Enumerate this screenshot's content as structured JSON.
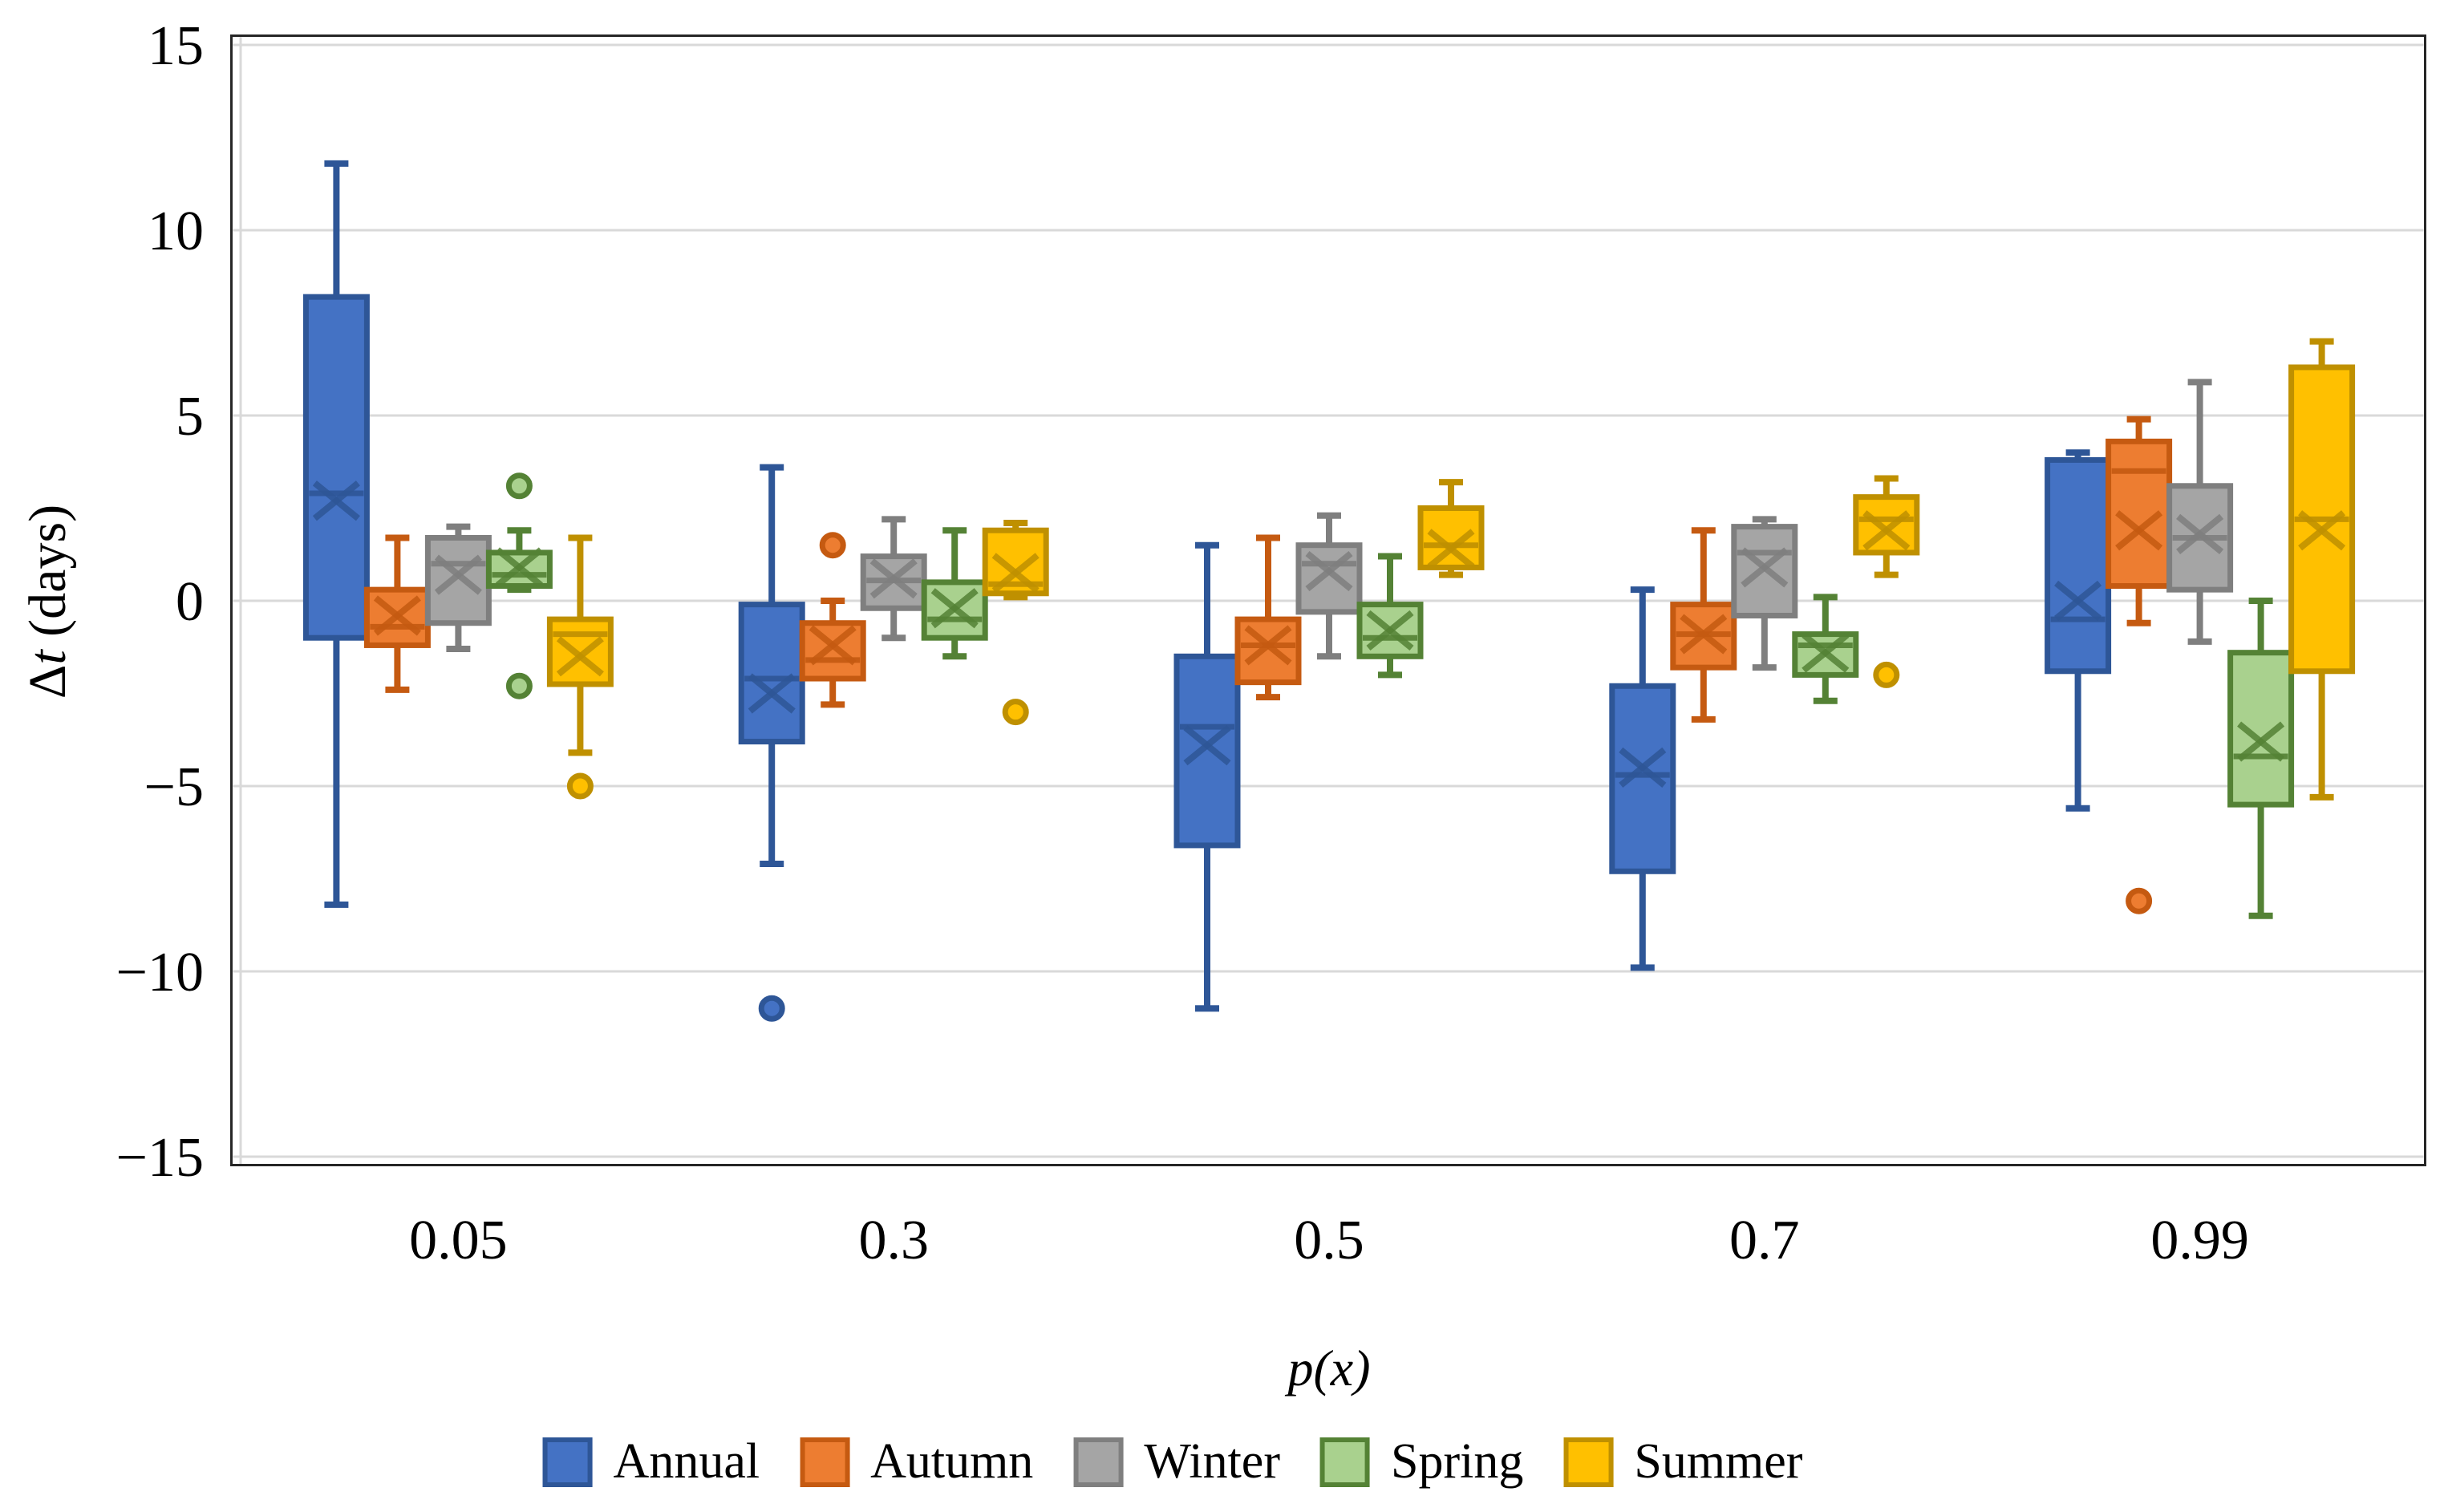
{
  "chart_data": {
    "type": "boxplot",
    "title": "",
    "xlabel": "p(x)",
    "ylabel": "Δt (days)",
    "ylabel_parts": {
      "delta": "Δ",
      "var": "t",
      "rest": " (days)"
    },
    "categories": [
      "0.05",
      "0.3",
      "0.5",
      "0.7",
      "0.99"
    ],
    "y_axis": {
      "min": -15,
      "max": 15,
      "step": 5,
      "tick_labels": [
        "15",
        "10",
        "5",
        "0",
        "−5",
        "−10",
        "−15"
      ]
    },
    "grid": {
      "on": true,
      "gridline_color": "#D9D9D9",
      "border_color": "#262626"
    },
    "legend_position": "bottom",
    "series": [
      {
        "name": "Annual",
        "fill": "#4472C4",
        "stroke": "#2E5697",
        "boxes": [
          {
            "whislo": -8.2,
            "q1": -1.0,
            "med": 2.9,
            "q3": 8.2,
            "whishi": 11.8,
            "mean": 2.7,
            "outliers": []
          },
          {
            "whislo": -7.1,
            "q1": -3.8,
            "med": -2.1,
            "q3": -0.1,
            "whishi": 3.6,
            "mean": -2.5,
            "outliers": [
              -11.0
            ]
          },
          {
            "whislo": -11.0,
            "q1": -6.6,
            "med": -3.4,
            "q3": -1.5,
            "whishi": 1.5,
            "mean": -3.9,
            "outliers": []
          },
          {
            "whislo": -9.9,
            "q1": -7.3,
            "med": -4.7,
            "q3": -2.3,
            "whishi": 0.3,
            "mean": -4.5,
            "outliers": []
          },
          {
            "whislo": -5.6,
            "q1": -1.9,
            "med": -0.5,
            "q3": 3.8,
            "whishi": 4.0,
            "mean": 0.0,
            "outliers": []
          }
        ]
      },
      {
        "name": "Autumn",
        "fill": "#ED7D31",
        "stroke": "#C55A11",
        "boxes": [
          {
            "whislo": -2.4,
            "q1": -1.2,
            "med": -0.7,
            "q3": 0.3,
            "whishi": 1.7,
            "mean": -0.4,
            "outliers": []
          },
          {
            "whislo": -2.8,
            "q1": -2.1,
            "med": -1.6,
            "q3": -0.6,
            "whishi": 0.0,
            "mean": -1.2,
            "outliers": [
              1.5
            ]
          },
          {
            "whislo": -2.6,
            "q1": -2.2,
            "med": -1.2,
            "q3": -0.5,
            "whishi": 1.7,
            "mean": -1.2,
            "outliers": []
          },
          {
            "whislo": -3.2,
            "q1": -1.8,
            "med": -0.9,
            "q3": -0.1,
            "whishi": 1.9,
            "mean": -0.9,
            "outliers": []
          },
          {
            "whislo": -0.6,
            "q1": 0.4,
            "med": 3.5,
            "q3": 4.3,
            "whishi": 4.9,
            "mean": 1.9,
            "outliers": [
              -8.1
            ]
          }
        ]
      },
      {
        "name": "Winter",
        "fill": "#A5A5A5",
        "stroke": "#7F7F7F",
        "boxes": [
          {
            "whislo": -1.3,
            "q1": -0.6,
            "med": 1.0,
            "q3": 1.7,
            "whishi": 2.0,
            "mean": 0.7,
            "outliers": []
          },
          {
            "whislo": -1.0,
            "q1": -0.2,
            "med": 0.55,
            "q3": 1.2,
            "whishi": 2.2,
            "mean": 0.6,
            "outliers": []
          },
          {
            "whislo": -1.5,
            "q1": -0.3,
            "med": 1.0,
            "q3": 1.5,
            "whishi": 2.3,
            "mean": 0.8,
            "outliers": []
          },
          {
            "whislo": -1.8,
            "q1": -0.4,
            "med": 1.3,
            "q3": 2.0,
            "whishi": 2.2,
            "mean": 0.9,
            "outliers": []
          },
          {
            "whislo": -1.1,
            "q1": 0.3,
            "med": 1.7,
            "q3": 3.1,
            "whishi": 5.9,
            "mean": 1.8,
            "outliers": []
          }
        ]
      },
      {
        "name": "Spring",
        "fill": "#A9D18E",
        "stroke": "#548235",
        "boxes": [
          {
            "whislo": 0.3,
            "q1": 0.4,
            "med": 0.7,
            "q3": 1.3,
            "whishi": 1.9,
            "mean": 0.9,
            "outliers": [
              3.1,
              -2.3
            ]
          },
          {
            "whislo": -1.5,
            "q1": -1.0,
            "med": -0.5,
            "q3": 0.5,
            "whishi": 1.9,
            "mean": -0.2,
            "outliers": []
          },
          {
            "whislo": -2.0,
            "q1": -1.5,
            "med": -1.0,
            "q3": -0.1,
            "whishi": 1.2,
            "mean": -0.8,
            "outliers": []
          },
          {
            "whislo": -2.7,
            "q1": -2.0,
            "med": -1.2,
            "q3": -0.9,
            "whishi": 0.1,
            "mean": -1.4,
            "outliers": []
          },
          {
            "whislo": -8.5,
            "q1": -5.5,
            "med": -4.2,
            "q3": -1.4,
            "whishi": 0.0,
            "mean": -3.8,
            "outliers": []
          }
        ]
      },
      {
        "name": "Summer",
        "fill": "#FFC000",
        "stroke": "#BF9000",
        "boxes": [
          {
            "whislo": -4.1,
            "q1": -2.25,
            "med": -0.9,
            "q3": -0.5,
            "whishi": 1.7,
            "mean": -1.5,
            "outliers": [
              -5.0
            ]
          },
          {
            "whislo": 0.1,
            "q1": 0.2,
            "med": 0.45,
            "q3": 1.9,
            "whishi": 2.1,
            "mean": 0.75,
            "outliers": [
              -3.0
            ]
          },
          {
            "whislo": 0.7,
            "q1": 0.9,
            "med": 1.5,
            "q3": 2.5,
            "whishi": 3.2,
            "mean": 1.4,
            "outliers": []
          },
          {
            "whislo": 0.7,
            "q1": 1.3,
            "med": 2.2,
            "q3": 2.8,
            "whishi": 3.3,
            "mean": 1.9,
            "outliers": [
              -2.0
            ]
          },
          {
            "whislo": -5.3,
            "q1": -1.9,
            "med": 2.2,
            "q3": 6.3,
            "whishi": 7.0,
            "mean": 1.9,
            "outliers": []
          }
        ]
      }
    ]
  }
}
